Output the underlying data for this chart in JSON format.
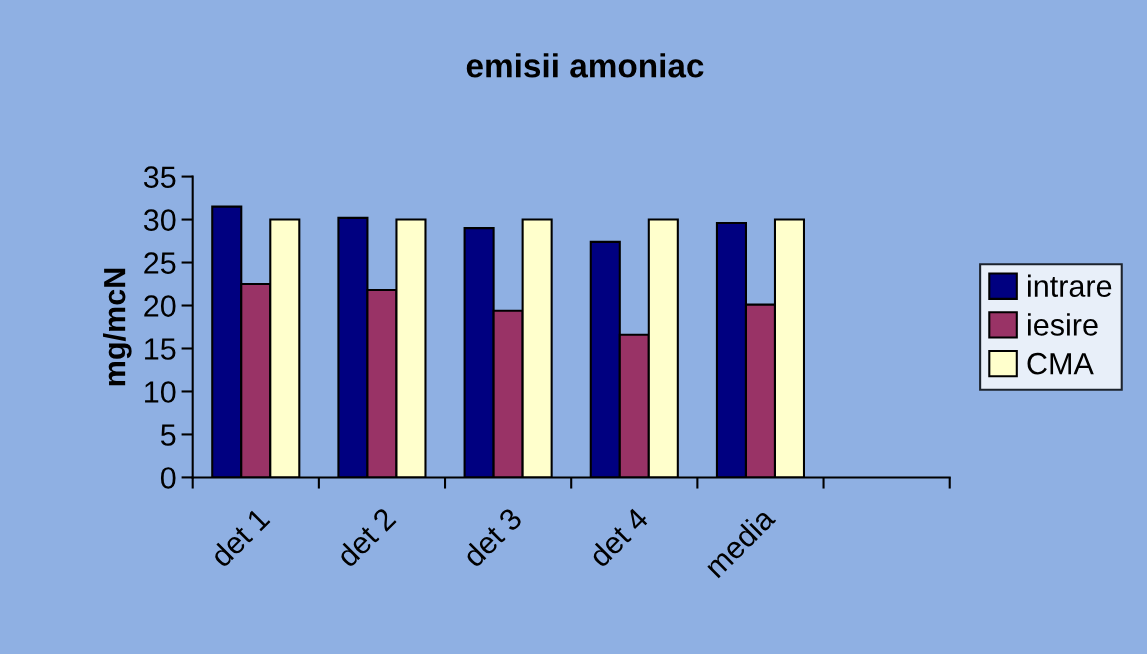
{
  "chart_data": {
    "type": "bar",
    "title": "emisii amoniac",
    "ylabel": "mg/mcN",
    "categories": [
      "det 1",
      "det 2",
      "det 3",
      "det 4",
      "media",
      null
    ],
    "series": [
      {
        "name": "intrare",
        "color": "#000080",
        "values": [
          31.5,
          30.2,
          29.0,
          27.4,
          29.6,
          null
        ]
      },
      {
        "name": "iesire",
        "color": "#993366",
        "values": [
          22.5,
          21.8,
          19.4,
          16.6,
          20.1,
          null
        ]
      },
      {
        "name": "CMA",
        "color": "#ffffcc",
        "values": [
          30,
          30,
          30,
          30,
          30,
          null
        ]
      }
    ],
    "ylim": [
      0,
      35
    ],
    "yticks": [
      0,
      5,
      10,
      15,
      20,
      25,
      30,
      35
    ],
    "grid": false,
    "legend": "right"
  }
}
